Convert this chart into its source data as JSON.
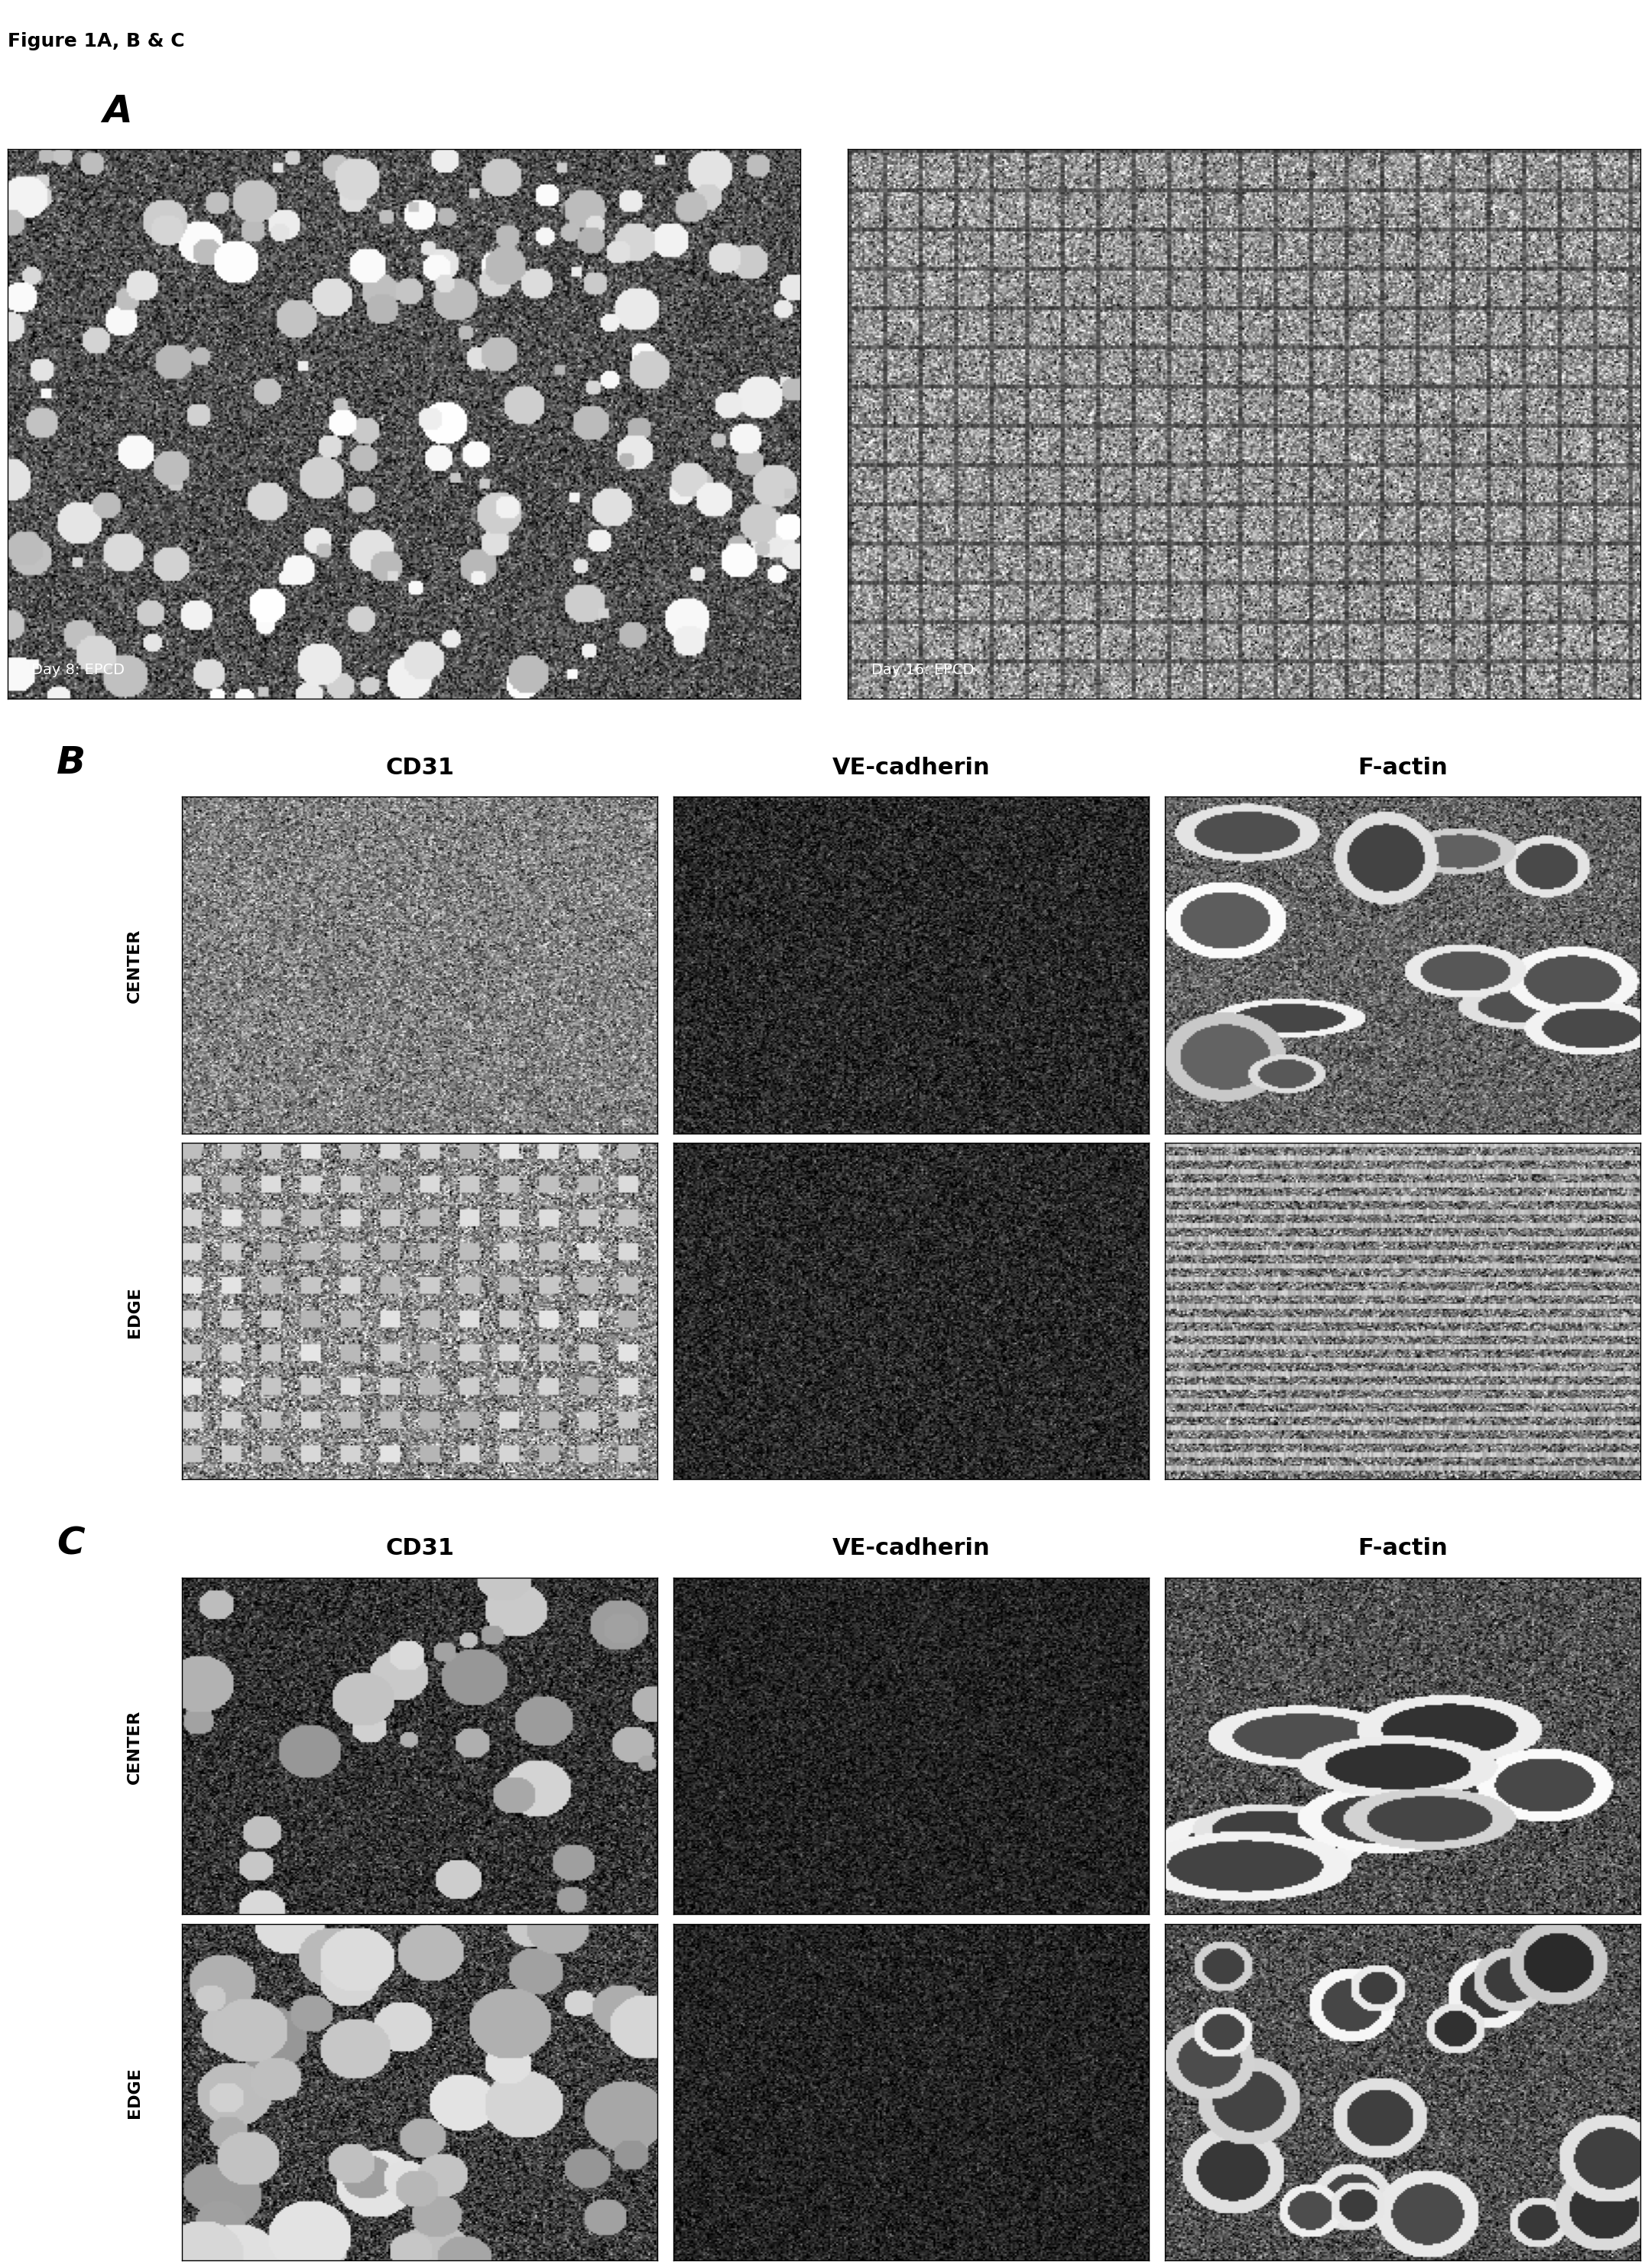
{
  "figure_label": "Figure 1A, B & C",
  "panel_A_label": "A",
  "panel_B_label": "B",
  "panel_C_label": "C",
  "panel_A_captions": [
    "Day 8: EPCD",
    "Day 16: EPCD"
  ],
  "panel_B_col_labels": [
    "CD31",
    "VE-cadherin",
    "F-actin"
  ],
  "panel_B_row_labels": [
    "CENTER",
    "EDGE"
  ],
  "panel_C_col_labels": [
    "CD31",
    "VE-cadherin",
    "F-actin"
  ],
  "panel_C_row_labels": [
    "CENTER",
    "EDGE"
  ],
  "background_color": "#ffffff",
  "text_color": "#000000",
  "label_fontsize": 36,
  "col_label_fontsize": 22,
  "row_label_fontsize": 16,
  "fig_label_fontsize": 18,
  "caption_fontsize": 14
}
